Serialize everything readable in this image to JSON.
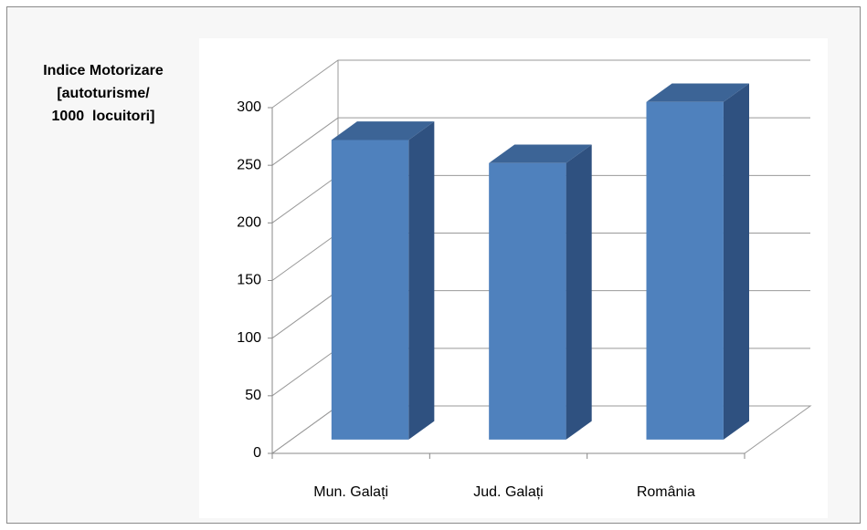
{
  "chart_data": {
    "type": "bar3d",
    "ylabel": [
      "Indice Motorizare",
      "[autoturisme/",
      "1000  locuitori]"
    ],
    "categories": [
      "Mun. Galați",
      "Jud. Galați",
      "România"
    ],
    "values": [
      260,
      240,
      293
    ],
    "color": "#4f81bd",
    "ylim": [
      0,
      300
    ],
    "yticks": [
      0,
      50,
      100,
      150,
      200,
      250,
      300
    ],
    "grid": true
  }
}
